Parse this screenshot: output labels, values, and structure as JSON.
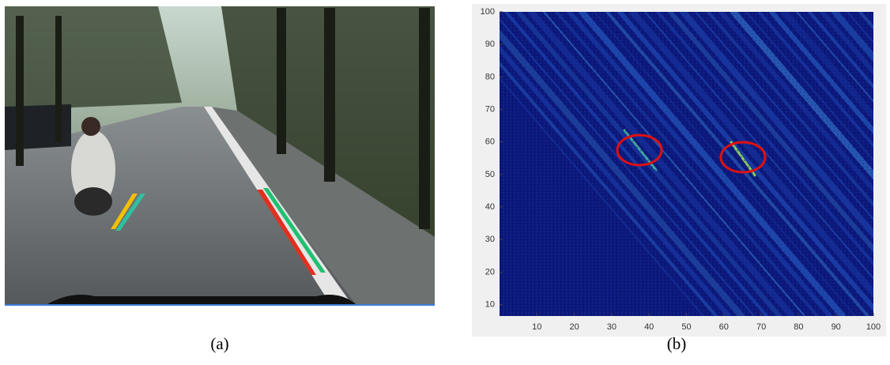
{
  "panels": [
    {
      "caption": "(a)"
    },
    {
      "caption": "(b)",
      "heatmap": {
        "xlim": [
          0,
          100
        ],
        "ylim": [
          6.5,
          100
        ],
        "xticks": [
          10,
          20,
          30,
          40,
          50,
          60,
          70,
          80,
          90,
          100
        ],
        "yticks": [
          10,
          20,
          30,
          40,
          50,
          60,
          70,
          80,
          90,
          100
        ]
      }
    }
  ]
}
